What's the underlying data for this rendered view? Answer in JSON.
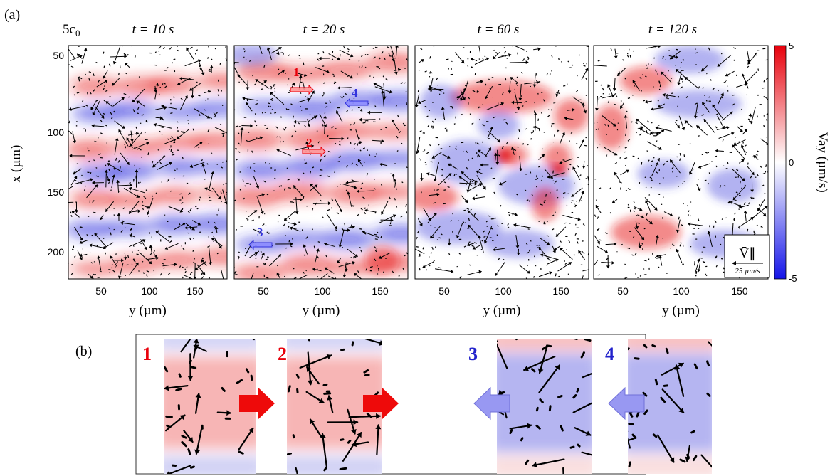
{
  "figure": {
    "panel_a_label": "(a)",
    "panel_b_label": "(b)",
    "concentration_label": "5c",
    "concentration_sub": "0",
    "x_axis_label": "x (µm)",
    "y_axis_label": "y (µm)",
    "colorbar": {
      "label": "V̄ay (µm/s)",
      "ticks": [
        "5",
        "0",
        "-5"
      ],
      "min": -5,
      "max": 5,
      "colors": {
        "positive": "#e8000b",
        "zero": "#ffffff",
        "negative": "#1414e8"
      }
    },
    "x_ticks": [
      "50",
      "100",
      "150",
      "200"
    ],
    "y_ticks": [
      "50",
      "100",
      "150"
    ],
    "scale_legend": {
      "symbol": "V̄∥",
      "length_label": "25 µm/s"
    },
    "panels": [
      {
        "time": "t = 10 s"
      },
      {
        "time": "t = 20 s",
        "markers": [
          {
            "label": "1",
            "direction": "right",
            "color": "#e8000b"
          },
          {
            "label": "2",
            "direction": "right",
            "color": "#e8000b"
          },
          {
            "label": "3",
            "direction": "left",
            "color": "#3333dd"
          },
          {
            "label": "4",
            "direction": "left",
            "color": "#3333dd"
          }
        ]
      },
      {
        "time": "t = 60 s"
      },
      {
        "time": "t = 120 s"
      }
    ],
    "zooms": [
      {
        "label": "1",
        "color": "#e8000b",
        "arrow": "right"
      },
      {
        "label": "2",
        "color": "#e8000b",
        "arrow": "right"
      },
      {
        "label": "3",
        "color": "#2222cc",
        "arrow": "left"
      },
      {
        "label": "4",
        "color": "#2222cc",
        "arrow": "left"
      }
    ]
  }
}
